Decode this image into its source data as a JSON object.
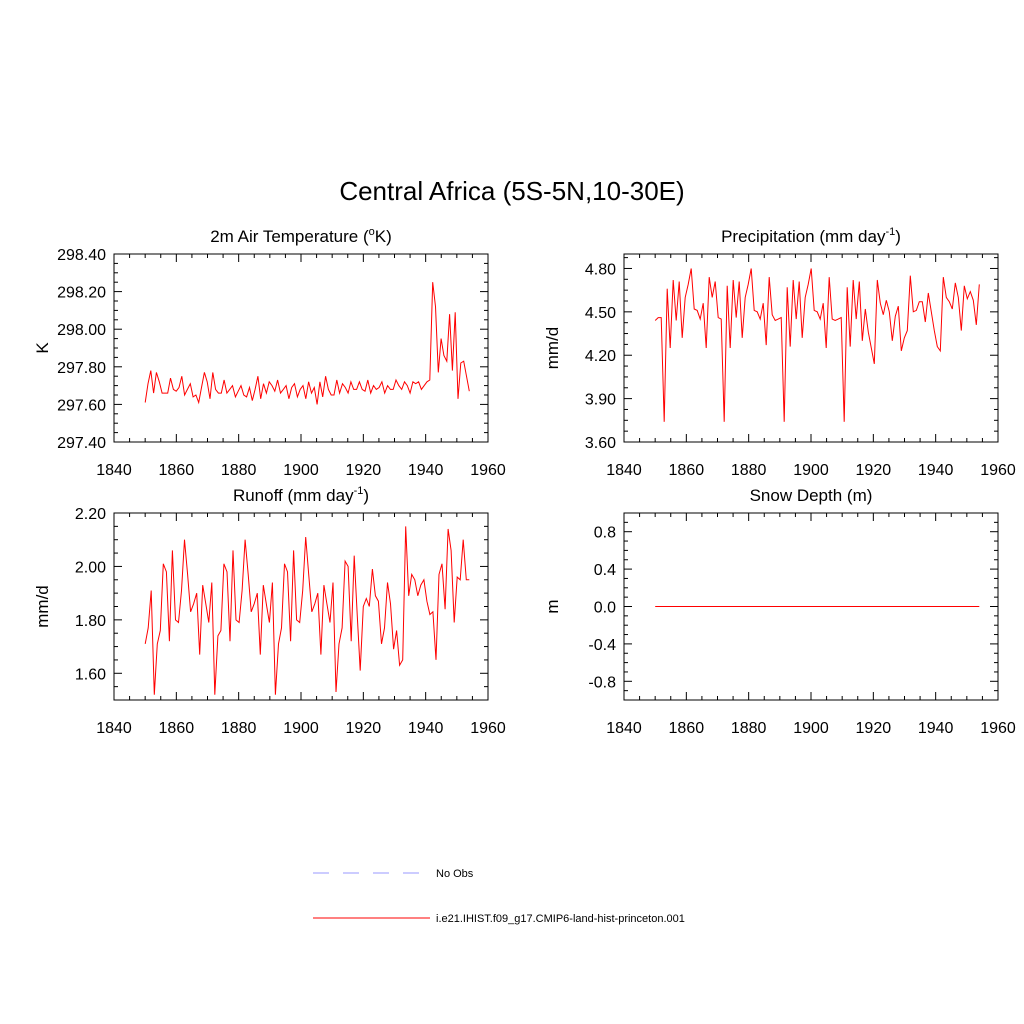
{
  "figure": {
    "title": "Central Africa (5S-5N,10-30E)"
  },
  "colors": {
    "series": "#ff0000",
    "obs": "#9999ff",
    "axis": "#000000"
  },
  "chart_data": [
    {
      "type": "line",
      "title": "2m Air Temperature (",
      "title_sup": "o",
      "title_end": "K)",
      "ylabel": "K",
      "xlim": [
        1840,
        1960
      ],
      "ylim": [
        297.4,
        298.4
      ],
      "xticks": [
        "1840",
        "1860",
        "1880",
        "1900",
        "1920",
        "1940",
        "1960"
      ],
      "yticks": [
        "297.40",
        "297.60",
        "297.80",
        "298.00",
        "298.20",
        "298.40"
      ],
      "x_start": 1850,
      "series": [
        {
          "name": "i.e21.IHIST.f09_g17.CMIP6-land-hist-princeton.001",
          "values": [
            297.61,
            297.71,
            297.78,
            297.66,
            297.77,
            297.72,
            297.66,
            297.66,
            297.66,
            297.74,
            297.68,
            297.67,
            297.69,
            297.75,
            297.65,
            297.68,
            297.71,
            297.64,
            297.65,
            297.61,
            297.69,
            297.77,
            297.72,
            297.63,
            297.77,
            297.68,
            297.66,
            297.66,
            297.73,
            297.66,
            297.68,
            297.7,
            297.64,
            297.67,
            297.7,
            297.65,
            297.64,
            297.69,
            297.62,
            297.68,
            297.75,
            297.63,
            297.71,
            297.66,
            297.72,
            297.7,
            297.67,
            297.73,
            297.66,
            297.68,
            297.7,
            297.63,
            297.69,
            297.71,
            297.64,
            297.68,
            297.7,
            297.63,
            297.72,
            297.66,
            297.69,
            297.6,
            297.72,
            297.64,
            297.75,
            297.68,
            297.65,
            297.65,
            297.73,
            297.66,
            297.71,
            297.69,
            297.66,
            297.72,
            297.68,
            297.68,
            297.72,
            297.68,
            297.67,
            297.73,
            297.66,
            297.7,
            297.68,
            297.69,
            297.72,
            297.66,
            297.7,
            297.68,
            297.68,
            297.73,
            297.7,
            297.68,
            297.72,
            297.7,
            297.66,
            297.72,
            297.71,
            297.72,
            297.68,
            297.7,
            297.72,
            297.73,
            298.25,
            298.12,
            297.77,
            297.95,
            297.86,
            297.83,
            298.08,
            297.78,
            298.09,
            297.63,
            297.82,
            297.83,
            297.75,
            297.67
          ]
        }
      ]
    },
    {
      "type": "line",
      "title": "Precipitation (mm day",
      "title_sup": "-1",
      "title_end": ")",
      "ylabel": "mm/d",
      "xlim": [
        1840,
        1960
      ],
      "ylim": [
        3.6,
        4.9
      ],
      "xticks": [
        "1840",
        "1860",
        "1880",
        "1900",
        "1920",
        "1940",
        "1960"
      ],
      "yticks": [
        "3.60",
        "3.90",
        "4.20",
        "4.50",
        "4.80"
      ],
      "x_start": 1850,
      "series": [
        {
          "name": "i.e21.IHIST.f09_g17.CMIP6-land-hist-princeton.001",
          "values": [
            4.44,
            4.46,
            4.46,
            3.74,
            4.66,
            4.25,
            4.72,
            4.44,
            4.71,
            4.32,
            4.6,
            4.69,
            4.8,
            4.52,
            4.51,
            4.45,
            4.56,
            4.25,
            4.74,
            4.6,
            4.71,
            4.46,
            4.45,
            3.74,
            4.68,
            4.25,
            4.72,
            4.46,
            4.71,
            4.32,
            4.6,
            4.69,
            4.8,
            4.51,
            4.5,
            4.45,
            4.56,
            4.27,
            4.74,
            4.48,
            4.44,
            4.45,
            4.46,
            3.74,
            4.67,
            4.26,
            4.72,
            4.45,
            4.71,
            4.32,
            4.6,
            4.69,
            4.8,
            4.51,
            4.5,
            4.45,
            4.56,
            4.25,
            4.74,
            4.45,
            4.44,
            4.45,
            4.46,
            3.74,
            4.67,
            4.26,
            4.72,
            4.45,
            4.71,
            4.3,
            4.52,
            4.36,
            4.25,
            4.14,
            4.72,
            4.56,
            4.48,
            4.58,
            4.5,
            4.3,
            4.47,
            4.54,
            4.23,
            4.32,
            4.37,
            4.75,
            4.5,
            4.51,
            4.57,
            4.57,
            4.43,
            4.63,
            4.5,
            4.37,
            4.26,
            4.23,
            4.74,
            4.6,
            4.57,
            4.52,
            4.7,
            4.6,
            4.37,
            4.68,
            4.59,
            4.64,
            4.58,
            4.41,
            4.69
          ]
        }
      ]
    },
    {
      "type": "line",
      "title": "Runoff (mm day",
      "title_sup": "-1",
      "title_end": ")",
      "ylabel": "mm/d",
      "xlim": [
        1840,
        1960
      ],
      "ylim": [
        1.5,
        2.2
      ],
      "xticks": [
        "1840",
        "1860",
        "1880",
        "1900",
        "1920",
        "1940",
        "1960"
      ],
      "yticks": [
        "1.60",
        "1.80",
        "2.00",
        "2.20"
      ],
      "x_start": 1850,
      "series": [
        {
          "name": "i.e21.IHIST.f09_g17.CMIP6-land-hist-princeton.001",
          "values": [
            1.71,
            1.77,
            1.91,
            1.52,
            1.71,
            1.76,
            2.01,
            1.98,
            1.72,
            2.06,
            1.8,
            1.79,
            1.91,
            2.1,
            1.97,
            1.83,
            1.86,
            1.9,
            1.67,
            1.93,
            1.86,
            1.79,
            1.94,
            1.52,
            1.74,
            1.76,
            2.01,
            1.98,
            1.72,
            2.06,
            1.8,
            1.79,
            1.91,
            2.1,
            1.97,
            1.83,
            1.86,
            1.9,
            1.67,
            1.93,
            1.86,
            1.79,
            1.94,
            1.52,
            1.71,
            1.77,
            2.01,
            1.98,
            1.72,
            2.06,
            1.8,
            1.79,
            1.91,
            2.11,
            1.97,
            1.83,
            1.86,
            1.9,
            1.67,
            1.93,
            1.86,
            1.79,
            1.94,
            1.53,
            1.71,
            1.77,
            2.02,
            2.0,
            1.72,
            2.04,
            1.82,
            1.61,
            1.85,
            1.88,
            1.85,
            1.99,
            1.89,
            1.87,
            1.71,
            1.77,
            1.94,
            1.86,
            1.69,
            1.76,
            1.63,
            1.65,
            2.15,
            1.89,
            1.97,
            1.95,
            1.89,
            1.93,
            1.95,
            1.87,
            1.82,
            1.83,
            1.65,
            1.97,
            2.01,
            1.84,
            2.14,
            2.06,
            1.79,
            1.96,
            1.95,
            2.1,
            1.95,
            1.95
          ]
        }
      ]
    },
    {
      "type": "line",
      "title": "Snow Depth (m)",
      "title_sup": "",
      "title_end": "",
      "ylabel": "m",
      "xlim": [
        1840,
        1960
      ],
      "ylim": [
        -1.0,
        1.0
      ],
      "xticks": [
        "1840",
        "1860",
        "1880",
        "1900",
        "1920",
        "1940",
        "1960"
      ],
      "yticks": [
        "-0.8",
        "-0.4",
        "0.0",
        "0.4",
        "0.8"
      ],
      "x_start": 1850,
      "series": [
        {
          "name": "i.e21.IHIST.f09_g17.CMIP6-land-hist-princeton.001",
          "values": [
            0,
            0
          ]
        }
      ],
      "x_end": 1954
    }
  ],
  "legend": [
    {
      "label": "No Obs",
      "style": "dashed",
      "color": "#9999ff"
    },
    {
      "label": "i.e21.IHIST.f09_g17.CMIP6-land-hist-princeton.001",
      "style": "solid",
      "color": "#ff0000"
    }
  ]
}
